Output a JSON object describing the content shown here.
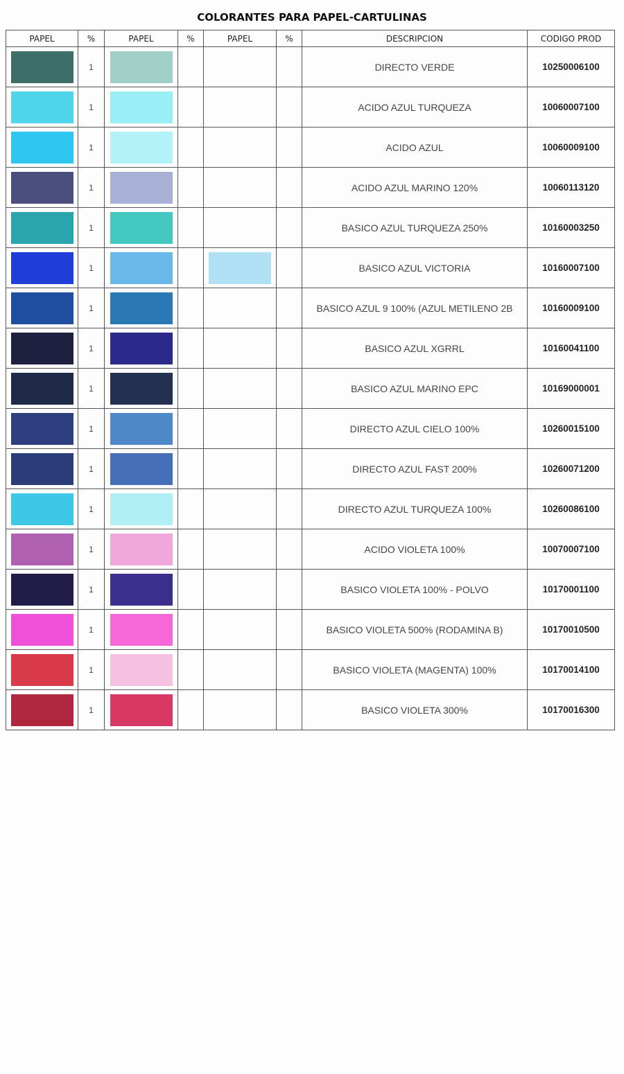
{
  "title": "COLORANTES PARA PAPEL-CARTULINAS",
  "headers": [
    "PAPEL",
    "%",
    "PAPEL",
    "%",
    "PAPEL",
    "%",
    "DESCRIPCION",
    "CODIGO PROD"
  ],
  "rows": [
    {
      "c1": "#3e6e68",
      "p1": "1",
      "c2": "#9fcfc6",
      "c3": null,
      "desc": "DIRECTO VERDE",
      "code": "10250006100"
    },
    {
      "c1": "#4fd6ea",
      "p1": "1",
      "c2": "#9aeef6",
      "c3": null,
      "desc": "ACIDO AZUL TURQUEZA",
      "code": "10060007100"
    },
    {
      "c1": "#2ec6ee",
      "p1": "1",
      "c2": "#b2f2f8",
      "c3": null,
      "desc": "ACIDO AZUL",
      "code": "10060009100"
    },
    {
      "c1": "#4b4f7e",
      "p1": "1",
      "c2": "#a9b0d6",
      "c3": null,
      "desc": "ACIDO AZUL MARINO 120%",
      "code": "10060113120"
    },
    {
      "c1": "#2aa5ad",
      "p1": "1",
      "c2": "#45c8c2",
      "c3": null,
      "desc": "BASICO AZUL TURQUEZA 250%",
      "code": "10160003250"
    },
    {
      "c1": "#1f3fd8",
      "p1": "1",
      "c2": "#6ab8ea",
      "c3": "#b0e0f4",
      "desc": "BASICO AZUL VICTORIA",
      "code": "10160007100"
    },
    {
      "c1": "#1f4ea0",
      "p1": "1",
      "c2": "#2a78b4",
      "c3": null,
      "desc": "BASICO AZUL 9 100% (AZUL METILENO 2B",
      "code": "10160009100"
    },
    {
      "c1": "#1e2040",
      "p1": "1",
      "c2": "#2a2a8a",
      "c3": null,
      "desc": "BASICO AZUL XGRRL",
      "code": "10160041100"
    },
    {
      "c1": "#1e2a48",
      "p1": "1",
      "c2": "#233050",
      "c3": null,
      "desc": "BASICO AZUL MARINO EPC",
      "code": "10169000001"
    },
    {
      "c1": "#2e3f80",
      "p1": "1",
      "c2": "#4f88c8",
      "c3": null,
      "desc": "DIRECTO AZUL CIELO 100%",
      "code": "10260015100"
    },
    {
      "c1": "#2c3c78",
      "p1": "1",
      "c2": "#4570b8",
      "c3": null,
      "desc": "DIRECTO AZUL FAST 200%",
      "code": "10260071200"
    },
    {
      "c1": "#3ec8e8",
      "p1": "1",
      "c2": "#b0f0f4",
      "c3": null,
      "desc": "DIRECTO AZUL TURQUEZA 100%",
      "code": "10260086100"
    },
    {
      "c1": "#b060b0",
      "p1": "1",
      "c2": "#f0a8dc",
      "c3": null,
      "desc": "ACIDO VIOLETA 100%",
      "code": "10070007100"
    },
    {
      "c1": "#201e48",
      "p1": "1",
      "c2": "#3a2f8c",
      "c3": null,
      "desc": "BASICO VIOLETA 100% - POLVO",
      "code": "10170001100"
    },
    {
      "c1": "#f050d8",
      "p1": "1",
      "c2": "#f668d8",
      "c3": null,
      "desc": "BASICO VIOLETA 500% (RODAMINA B)",
      "code": "10170010500"
    },
    {
      "c1": "#d83a4a",
      "p1": "1",
      "c2": "#f6c0e0",
      "c3": null,
      "desc": "BASICO VIOLETA (MAGENTA) 100%",
      "code": "10170014100"
    },
    {
      "c1": "#b02840",
      "p1": "1",
      "c2": "#d83864",
      "c3": null,
      "desc": "BASICO VIOLETA 300%",
      "code": "10170016300"
    }
  ]
}
